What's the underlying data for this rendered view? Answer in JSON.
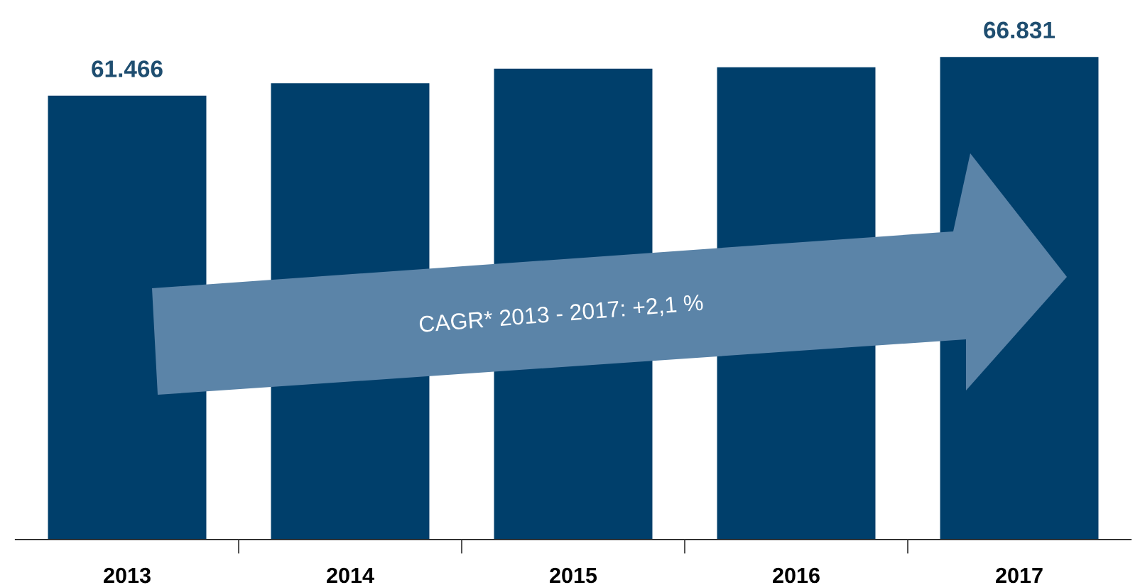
{
  "chart_data": {
    "type": "bar",
    "categories": [
      "2013",
      "2014",
      "2015",
      "2016",
      "2017"
    ],
    "values": [
      61.466,
      63.2,
      65.2,
      65.4,
      66.831
    ],
    "value_labels": [
      "61.466",
      null,
      null,
      null,
      "66.831"
    ],
    "color": "#003f6b",
    "annotations": [
      "CAGR* 2013 - 2017: +2,1 %"
    ],
    "grid": false,
    "legend": false
  }
}
